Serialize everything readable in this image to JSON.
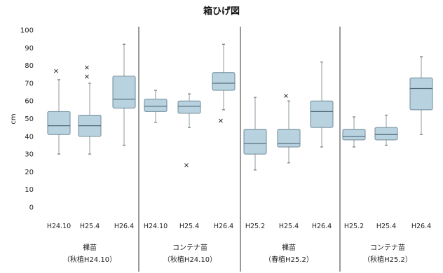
{
  "chart_data": {
    "type": "box",
    "title": "箱ひげ図",
    "ylabel": "cm",
    "ylim": [
      0,
      100
    ],
    "yticks": [
      0,
      10,
      20,
      30,
      40,
      50,
      60,
      70,
      80,
      90,
      100
    ],
    "groups": [
      {
        "label_line1": "裸苗",
        "label_line2": "（秋植H24.10）",
        "boxes": [
          {
            "label": "H24.10",
            "min": 30,
            "q1": 41,
            "median": 46,
            "q3": 54,
            "max": 72,
            "outliers": [
              77
            ]
          },
          {
            "label": "H25.4",
            "min": 30,
            "q1": 40,
            "median": 46,
            "q3": 52,
            "max": 70,
            "outliers": [
              74,
              79
            ]
          },
          {
            "label": "H26.4",
            "min": 35,
            "q1": 56,
            "median": 61,
            "q3": 74,
            "max": 92,
            "outliers": []
          }
        ]
      },
      {
        "label_line1": "コンテナ苗",
        "label_line2": "（秋植H24.10）",
        "boxes": [
          {
            "label": "H24.10",
            "min": 48,
            "q1": 54,
            "median": 57,
            "q3": 61,
            "max": 66,
            "outliers": []
          },
          {
            "label": "H25.4",
            "min": 45,
            "q1": 53,
            "median": 57,
            "q3": 60,
            "max": 64,
            "outliers": [
              24
            ]
          },
          {
            "label": "H26.4",
            "min": 55,
            "q1": 66,
            "median": 70,
            "q3": 76,
            "max": 92,
            "outliers": [
              49
            ]
          }
        ]
      },
      {
        "label_line1": "裸苗",
        "label_line2": "（春植H25.2）",
        "boxes": [
          {
            "label": "H25.2",
            "min": 21,
            "q1": 30,
            "median": 36,
            "q3": 44,
            "max": 62,
            "outliers": []
          },
          {
            "label": "H25.4",
            "min": 25,
            "q1": 34,
            "median": 36,
            "q3": 44,
            "max": 60,
            "outliers": [
              63
            ]
          },
          {
            "label": "H26.4",
            "min": 34,
            "q1": 45,
            "median": 54,
            "q3": 60,
            "max": 82,
            "outliers": []
          }
        ]
      },
      {
        "label_line1": "コンテナ苗",
        "label_line2": "（秋植H25.2）",
        "boxes": [
          {
            "label": "H25.2",
            "min": 34,
            "q1": 38,
            "median": 40,
            "q3": 44,
            "max": 51,
            "outliers": []
          },
          {
            "label": "H25.4",
            "min": 35,
            "q1": 38,
            "median": 41,
            "q3": 45,
            "max": 52,
            "outliers": []
          },
          {
            "label": "H26.4",
            "min": 41,
            "q1": 55,
            "median": 67,
            "q3": 73,
            "max": 85,
            "outliers": []
          }
        ]
      }
    ]
  }
}
